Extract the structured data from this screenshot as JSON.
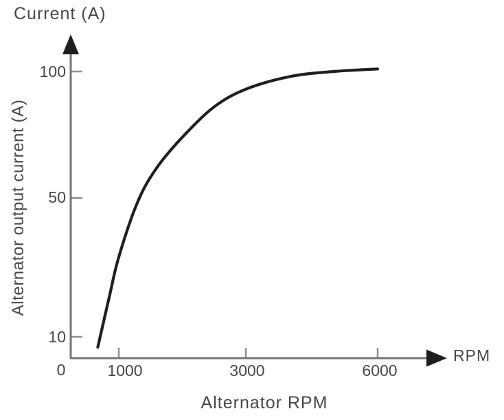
{
  "title": "Current (A)",
  "y_axis": {
    "label": "Alternator output current (A)",
    "tick_labels": [
      "100",
      "50",
      "10"
    ]
  },
  "x_axis": {
    "origin_label": "0",
    "tick_labels": [
      "1000",
      "3000",
      "6000"
    ],
    "arrow_label": "RPM",
    "label": "Alternator RPM"
  },
  "colors": {
    "background": "#ffffff",
    "text": "#474747",
    "axis": "#767676",
    "tick": "#8f8f8f",
    "curve": "#1f1f1f",
    "arrow": "#1e1e1e"
  },
  "chart_data": {
    "type": "line",
    "title": "Current (A)",
    "xlabel": "Alternator RPM",
    "ylabel": "Alternator output current (A)",
    "x_tick_values": [
      0,
      1000,
      3000,
      6000
    ],
    "y_tick_values": [
      10,
      50,
      100
    ],
    "xlim": [
      0,
      6800
    ],
    "ylim": [
      0,
      110
    ],
    "grid": false,
    "legend": "none",
    "axis_style": "schematic arrows, non-linear tick spacing",
    "series": [
      {
        "name": "Alternator output current",
        "x": [
          575,
          800,
          1000,
          1300,
          1600,
          2000,
          2500,
          3000,
          4000,
          5000,
          6000
        ],
        "y": [
          7,
          21,
          33,
          49,
          62,
          74,
          86,
          93,
          98,
          100,
          101
        ]
      }
    ]
  }
}
